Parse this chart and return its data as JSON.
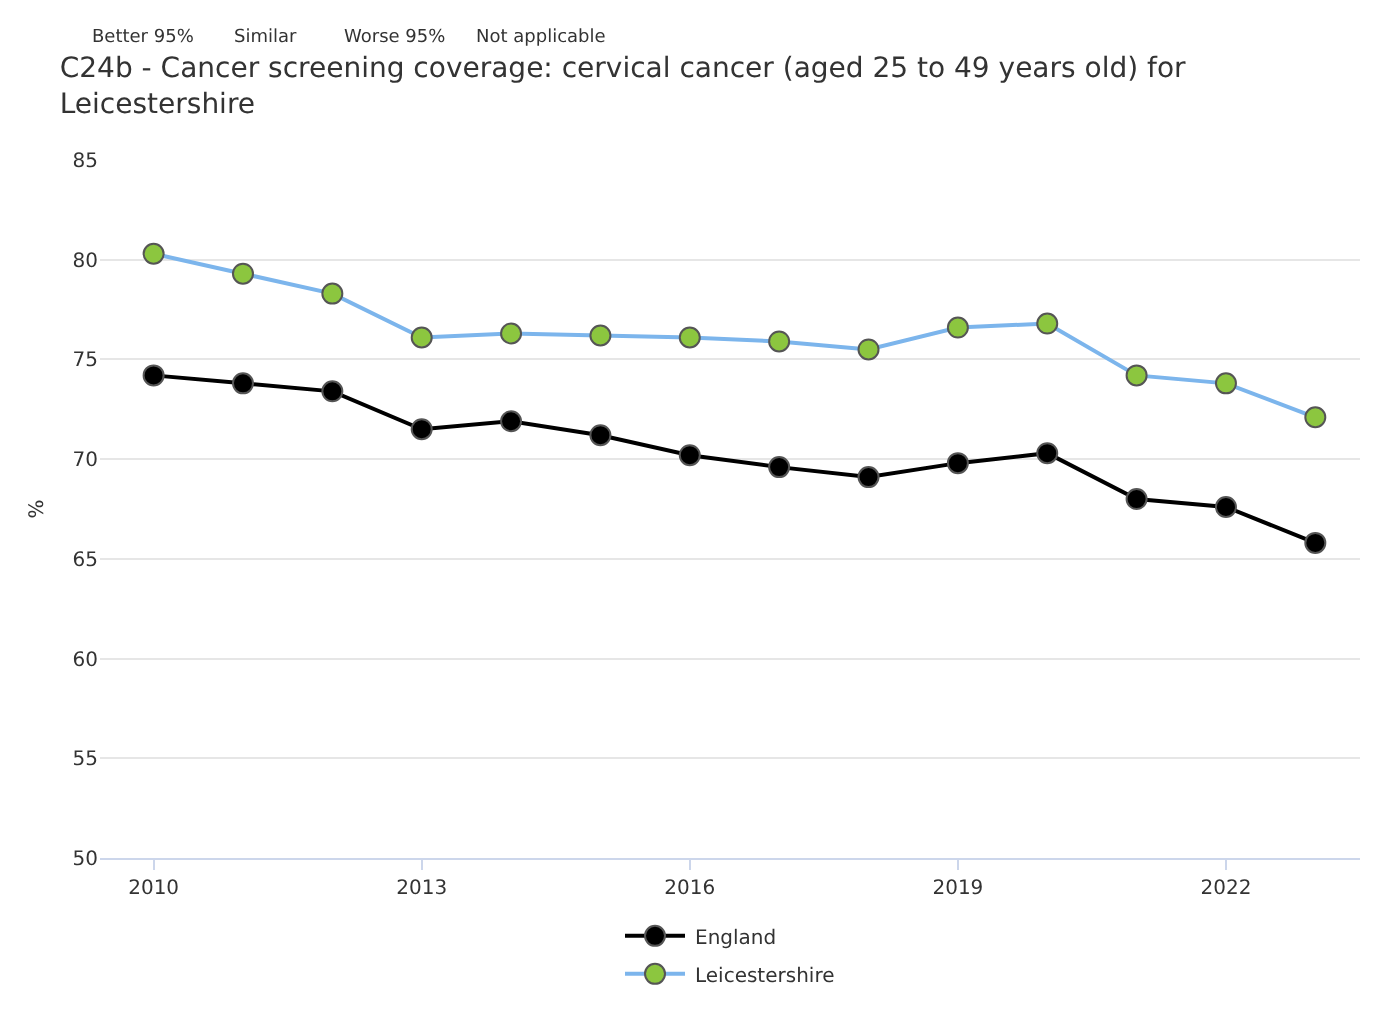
{
  "chart_data": {
    "type": "line",
    "title": "C24b - Cancer screening coverage: cervical cancer (aged 25 to 49 years old) for\nLeicestershire",
    "annotations": [
      "Better 95%",
      "Similar",
      "Worse 95%",
      "Not applicable"
    ],
    "ylabel": "%",
    "x": [
      2010,
      2011,
      2012,
      2013,
      2014,
      2015,
      2016,
      2017,
      2018,
      2019,
      2020,
      2021,
      2022,
      2023
    ],
    "xlim": [
      2009.4,
      2023.5
    ],
    "xticks": [
      2010,
      2013,
      2016,
      2019,
      2022
    ],
    "ylim": [
      50,
      85
    ],
    "yticks": [
      50,
      55,
      60,
      65,
      70,
      75,
      80,
      85
    ],
    "grid": "y",
    "legend": "bottom",
    "marker": "circle",
    "line_style": "solid",
    "series": [
      {
        "name": "England",
        "color": "#000000",
        "values": [
          74.2,
          73.8,
          73.4,
          71.5,
          71.9,
          71.2,
          70.2,
          69.6,
          69.1,
          69.8,
          70.3,
          68.0,
          67.6,
          65.8
        ]
      },
      {
        "name": "Leicestershire",
        "color": "#7cb5ec",
        "colors": [
          "#8cc63f",
          "#8cc63f",
          "#8cc63f",
          "#8cc63f",
          "#8cc63f",
          "#8cc63f",
          "#8cc63f",
          "#8cc63f",
          "#8cc63f",
          "#8cc63f",
          "#8cc63f",
          "#8cc63f",
          "#8cc63f",
          "#8cc63f"
        ],
        "values": [
          80.3,
          79.3,
          78.3,
          76.1,
          76.3,
          76.2,
          76.1,
          75.9,
          75.5,
          76.6,
          76.8,
          74.2,
          73.8,
          72.1
        ]
      }
    ]
  }
}
